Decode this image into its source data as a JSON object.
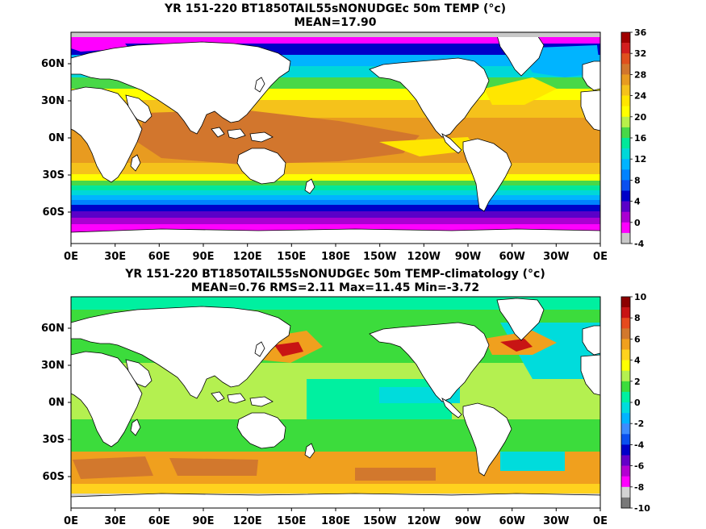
{
  "panels": [
    {
      "title_line1": "YR 151-220 BT1850TAIL55sNONUDGEc 50m TEMP (°c)",
      "title_line2": "MEAN=17.90",
      "lon_ticks": [
        "0E",
        "30E",
        "60E",
        "90E",
        "120E",
        "150E",
        "180E",
        "150W",
        "120W",
        "90W",
        "60W",
        "30W",
        "0E"
      ],
      "lat_ticks": [
        "60N",
        "30N",
        "0N",
        "30S",
        "60S"
      ],
      "colorbar": {
        "labels": [
          "36",
          "32",
          "28",
          "24",
          "20",
          "16",
          "12",
          "8",
          "4",
          "0",
          "-4"
        ],
        "colors": [
          "#a00000",
          "#d21e1e",
          "#e0501e",
          "#d2762d",
          "#e89b20",
          "#f5c21b",
          "#ffe600",
          "#ffff00",
          "#b8f04a",
          "#48d848",
          "#00e89a",
          "#00d8d8",
          "#00b4ff",
          "#0082ff",
          "#0a50f0",
          "#0000c8",
          "#5a00c8",
          "#aa00d2",
          "#ff00ff",
          "#c8c8c8"
        ]
      }
    },
    {
      "title_line1": "YR 151-220 BT1850TAIL55sNONUDGEc 50m TEMP-climatology (°c)",
      "title_line2": "MEAN=0.76  RMS=2.11   Max=11.45   Min=-3.72",
      "lon_ticks": [
        "0E",
        "30E",
        "60E",
        "90E",
        "120E",
        "150E",
        "180E",
        "150W",
        "120W",
        "90W",
        "60W",
        "30W",
        "0E"
      ],
      "lat_ticks": [
        "60N",
        "30N",
        "0N",
        "30S",
        "60S"
      ],
      "colorbar": {
        "labels": [
          "10",
          "8",
          "6",
          "4",
          "2",
          "0",
          "-2",
          "-4",
          "-6",
          "-8",
          "-10"
        ],
        "colors": [
          "#8c0000",
          "#c81414",
          "#e64b1e",
          "#d2782d",
          "#f0a01e",
          "#ffd21e",
          "#ffff00",
          "#b4f050",
          "#3cdc3c",
          "#00f0a0",
          "#00dcdc",
          "#00b4ff",
          "#3c8cff",
          "#0a50f0",
          "#0000c8",
          "#6400c8",
          "#b400d2",
          "#ff00ff",
          "#d2d2d2",
          "#787878"
        ]
      }
    }
  ]
}
